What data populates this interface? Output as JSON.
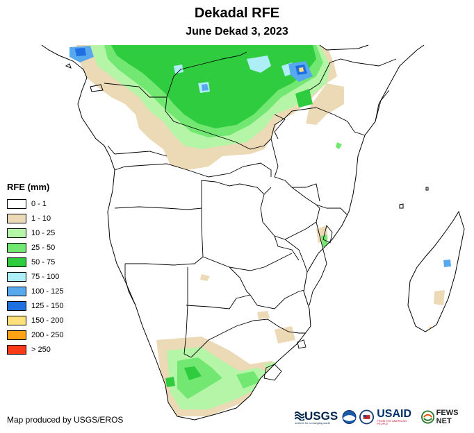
{
  "header": {
    "title": "Dekadal RFE",
    "subtitle": "June Dekad 3, 2023"
  },
  "legend": {
    "title": "RFE (mm)",
    "items": [
      {
        "label": "0 - 1",
        "color": "#ffffff"
      },
      {
        "label": "1 - 10",
        "color": "#ecd9b5"
      },
      {
        "label": "10 - 25",
        "color": "#b5f5a8"
      },
      {
        "label": "25 - 50",
        "color": "#72e872"
      },
      {
        "label": "50 - 75",
        "color": "#2fcc3f"
      },
      {
        "label": "75 - 100",
        "color": "#aeeef7"
      },
      {
        "label": "100 - 125",
        "color": "#58a8ee"
      },
      {
        "label": "125 - 150",
        "color": "#1f6fe0"
      },
      {
        "label": "150 - 200",
        "color": "#ffe07a"
      },
      {
        "label": "200 - 250",
        "color": "#ffa214"
      },
      {
        "label": "> 250",
        "color": "#ff3a16"
      }
    ]
  },
  "footer": {
    "credit": "Map produced by USGS/EROS",
    "logos": {
      "usgs": "USGS",
      "usgs_tagline": "science for a changing world",
      "usaid": "USAID",
      "usaid_tagline": "FROM THE AMERICAN PEOPLE",
      "fews": "FEWS NET"
    }
  }
}
